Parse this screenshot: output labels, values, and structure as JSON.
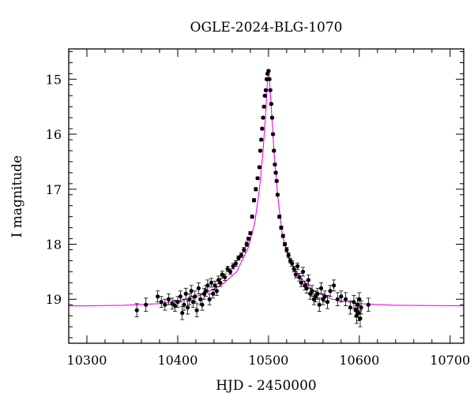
{
  "chart_data": {
    "type": "scatter",
    "title": "OGLE-2024-BLG-1070",
    "xlabel": "HJD - 2450000",
    "ylabel": "I magnitude",
    "xlim": [
      10280,
      10715
    ],
    "ylim": [
      14.45,
      19.8
    ],
    "y_inverted": true,
    "x_ticks": [
      10300,
      10400,
      10500,
      10600,
      10700
    ],
    "y_ticks": [
      15,
      16,
      17,
      18,
      19
    ],
    "grid": false,
    "colors": {
      "data": "#000000",
      "model": "#ff00ff"
    },
    "model": {
      "name": "",
      "type": "point-lens fit",
      "x": [
        10280,
        10300,
        10340,
        10380,
        10410,
        10430,
        10450,
        10465,
        10478,
        10485,
        10490,
        10494,
        10497,
        10499,
        10500,
        10501,
        10503,
        10506,
        10510,
        10515,
        10522,
        10535,
        10550,
        10570,
        10600,
        10640,
        10715
      ],
      "y": [
        19.12,
        19.12,
        19.11,
        19.08,
        19.0,
        18.9,
        18.72,
        18.5,
        18.05,
        17.6,
        17.0,
        16.3,
        15.6,
        15.0,
        14.85,
        15.0,
        15.5,
        16.3,
        17.1,
        17.8,
        18.25,
        18.62,
        18.85,
        19.0,
        19.08,
        19.11,
        19.12
      ]
    },
    "series": [
      {
        "name": "",
        "x": [
          10355,
          10365,
          10378,
          10382,
          10386,
          10390,
          10394,
          10397,
          10400,
          10403,
          10405,
          10407,
          10409,
          10411,
          10413,
          10415,
          10417,
          10419,
          10421,
          10423,
          10425,
          10427,
          10429,
          10431,
          10433,
          10435,
          10437,
          10439,
          10441,
          10443,
          10445,
          10447,
          10449,
          10452,
          10455,
          10458,
          10461,
          10464,
          10467,
          10470,
          10473,
          10476,
          10478,
          10480,
          10482,
          10484,
          10486,
          10488,
          10490,
          10491,
          10492,
          10493,
          10494,
          10495,
          10496,
          10497,
          10498,
          10499,
          10500,
          10501,
          10502,
          10503,
          10504,
          10505,
          10506,
          10507,
          10508,
          10509,
          10510,
          10512,
          10514,
          10516,
          10518,
          10520,
          10522,
          10524,
          10526,
          10528,
          10530,
          10532,
          10534,
          10536,
          10538,
          10540,
          10542,
          10544,
          10546,
          10548,
          10550,
          10552,
          10554,
          10556,
          10558,
          10560,
          10562,
          10565,
          10568,
          10572,
          10576,
          10580,
          10585,
          10590,
          10594,
          10596,
          10597,
          10598,
          10599,
          10600,
          10601,
          10602,
          10610
        ],
        "y": [
          19.2,
          19.1,
          18.95,
          19.05,
          19.1,
          19.0,
          19.08,
          19.12,
          19.05,
          18.95,
          19.25,
          19.1,
          18.9,
          19.15,
          19.0,
          18.85,
          19.05,
          18.95,
          19.2,
          18.8,
          19.0,
          19.1,
          18.9,
          18.85,
          18.75,
          19.0,
          18.7,
          18.9,
          18.75,
          18.85,
          18.65,
          18.7,
          18.55,
          18.6,
          18.45,
          18.5,
          18.4,
          18.35,
          18.25,
          18.2,
          18.1,
          18.0,
          17.9,
          17.8,
          17.5,
          17.2,
          17.0,
          16.8,
          16.6,
          16.3,
          16.1,
          15.9,
          15.7,
          15.5,
          15.3,
          15.2,
          15.0,
          14.9,
          14.85,
          15.0,
          15.2,
          15.45,
          15.7,
          16.0,
          16.3,
          16.55,
          16.7,
          16.85,
          17.1,
          17.5,
          17.7,
          17.85,
          18.0,
          18.1,
          18.2,
          18.3,
          18.35,
          18.45,
          18.55,
          18.4,
          18.6,
          18.7,
          18.5,
          18.75,
          18.8,
          18.65,
          18.9,
          18.85,
          19.0,
          18.95,
          18.9,
          19.1,
          18.8,
          19.0,
          18.95,
          19.05,
          18.85,
          18.75,
          19.0,
          18.95,
          19.0,
          19.15,
          19.05,
          19.2,
          19.3,
          19.1,
          19.25,
          19.0,
          19.35,
          19.15,
          19.1
        ],
        "yerr": [
          0.12,
          0.12,
          0.1,
          0.1,
          0.1,
          0.1,
          0.1,
          0.1,
          0.1,
          0.1,
          0.12,
          0.1,
          0.1,
          0.12,
          0.1,
          0.1,
          0.1,
          0.1,
          0.12,
          0.1,
          0.1,
          0.1,
          0.1,
          0.1,
          0.1,
          0.1,
          0.08,
          0.08,
          0.08,
          0.08,
          0.07,
          0.07,
          0.06,
          0.06,
          0.05,
          0.05,
          0.05,
          0.05,
          0.04,
          0.04,
          0.04,
          0.04,
          0.03,
          0.03,
          0.03,
          0.03,
          0.03,
          0.02,
          0.02,
          0.02,
          0.02,
          0.02,
          0.02,
          0.02,
          0.02,
          0.02,
          0.02,
          0.02,
          0.02,
          0.02,
          0.02,
          0.02,
          0.02,
          0.02,
          0.02,
          0.02,
          0.02,
          0.02,
          0.02,
          0.03,
          0.03,
          0.03,
          0.03,
          0.04,
          0.04,
          0.04,
          0.05,
          0.05,
          0.06,
          0.06,
          0.07,
          0.07,
          0.08,
          0.08,
          0.09,
          0.09,
          0.1,
          0.1,
          0.1,
          0.1,
          0.1,
          0.12,
          0.1,
          0.1,
          0.1,
          0.12,
          0.1,
          0.1,
          0.12,
          0.1,
          0.12,
          0.12,
          0.12,
          0.12,
          0.14,
          0.12,
          0.14,
          0.12,
          0.15,
          0.12,
          0.12
        ]
      }
    ]
  }
}
